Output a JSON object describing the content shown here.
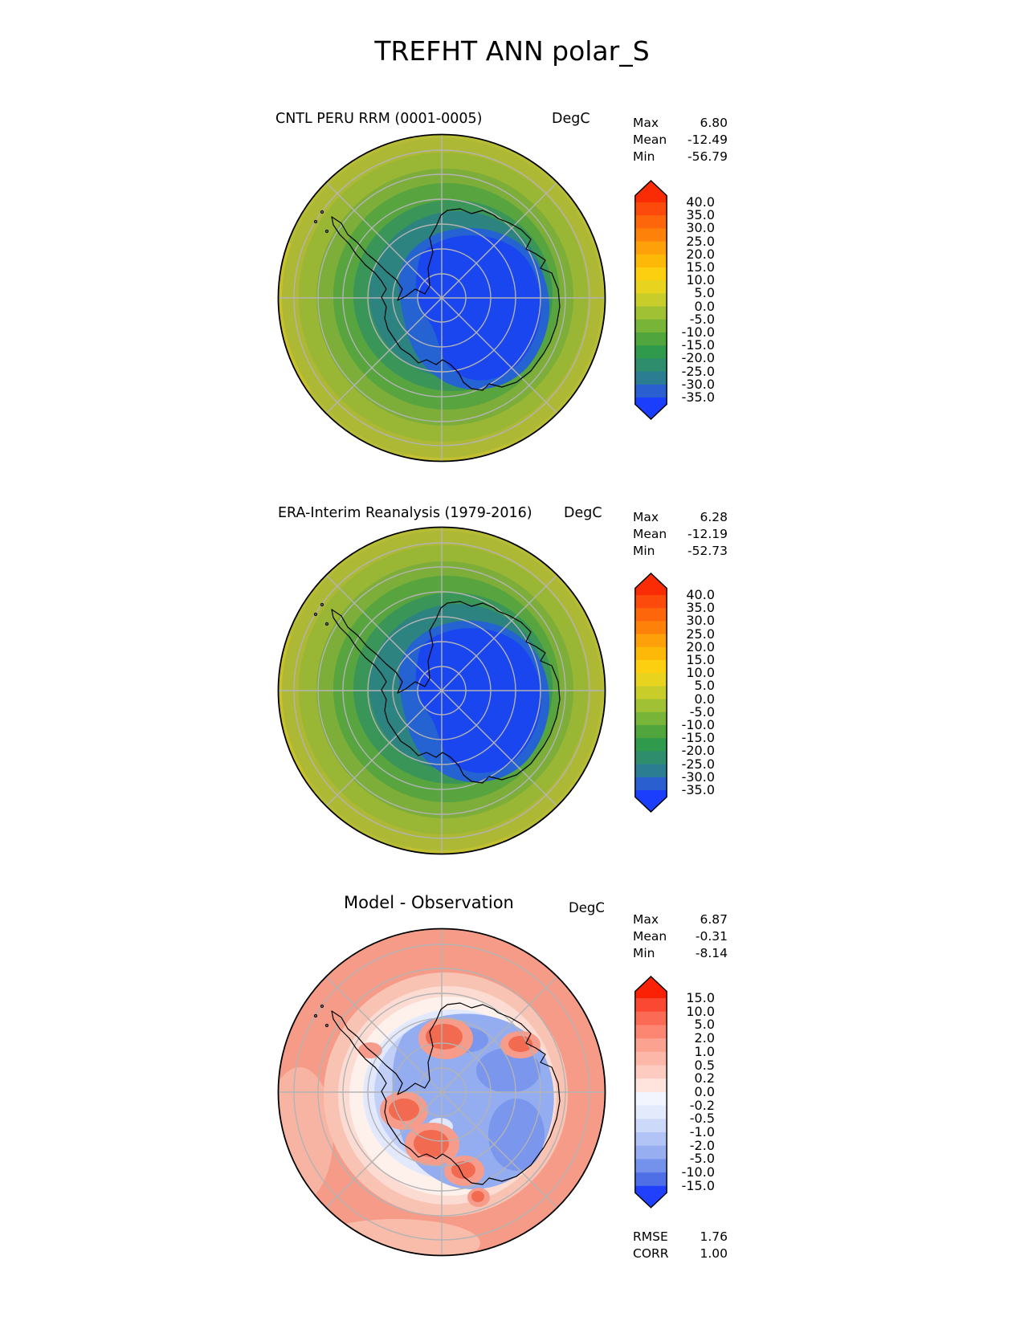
{
  "page_title": "TREFHT ANN polar_S",
  "panels": [
    {
      "title": "CNTL PERU RRM (0001-0005)",
      "units": "DegC",
      "stats": [
        {
          "label": "Max",
          "value": "6.80"
        },
        {
          "label": "Mean",
          "value": "-12.49"
        },
        {
          "label": "Min",
          "value": "-56.79"
        }
      ]
    },
    {
      "title": "ERA-Interim Reanalysis (1979-2016)",
      "units": "DegC",
      "stats": [
        {
          "label": "Max",
          "value": "6.28"
        },
        {
          "label": "Mean",
          "value": "-12.19"
        },
        {
          "label": "Min",
          "value": "-52.73"
        }
      ]
    },
    {
      "title": "Model - Observation",
      "units": "DegC",
      "stats": [
        {
          "label": "Max",
          "value": "6.87"
        },
        {
          "label": "Mean",
          "value": "-0.31"
        },
        {
          "label": "Min",
          "value": "-8.14"
        }
      ],
      "extra_stats": [
        {
          "label": "RMSE",
          "value": "1.76"
        },
        {
          "label": "CORR",
          "value": "1.00"
        }
      ]
    }
  ],
  "colorbars": {
    "absolute": {
      "labels": [
        "40.0",
        "35.0",
        "30.0",
        "25.0",
        "20.0",
        "15.0",
        "10.0",
        "5.0",
        "0.0",
        "-5.0",
        "-10.0",
        "-15.0",
        "-20.0",
        "-25.0",
        "-30.0",
        "-35.0"
      ],
      "cap_top_color": "#f92c06",
      "cap_bottom_color": "#1b3dfc",
      "segment_colors": [
        "#fc4a0d",
        "#fd660b",
        "#fe810a",
        "#fea009",
        "#feb808",
        "#fccf10",
        "#e8d41e",
        "#c8cd2a",
        "#9fc133",
        "#77b437",
        "#50a53c",
        "#2f9a4b",
        "#2d8d6d",
        "#2b7e92",
        "#2a5fd0"
      ]
    },
    "difference": {
      "labels": [
        "15.0",
        "10.0",
        "5.0",
        "2.0",
        "1.0",
        "0.5",
        "0.2",
        "0.0",
        "-0.2",
        "-0.5",
        "-1.0",
        "-2.0",
        "-5.0",
        "-10.0",
        "-15.0"
      ],
      "cap_top_color": "#fb2105",
      "cap_bottom_color": "#2040fe",
      "segment_colors": [
        "#fb4833",
        "#fb6a54",
        "#fc8672",
        "#fca291",
        "#fdb7a8",
        "#fdcbbf",
        "#fee4dd",
        "#f2f5fe",
        "#e3eafc",
        "#ccd9f9",
        "#b2c3f5",
        "#97aff1",
        "#7492ec",
        "#4e6fe6"
      ]
    }
  },
  "chart_data": [
    {
      "type": "contour_map",
      "variable": "TREFHT",
      "season": "ANN",
      "region": "polar_S",
      "projection": "south polar stereographic",
      "title": "CNTL PERU RRM (0001-0005)",
      "units": "DegC",
      "stats": {
        "max": 6.8,
        "mean": -12.49,
        "min": -56.79
      },
      "contour_levels": [
        -35,
        -30,
        -25,
        -20,
        -15,
        -10,
        -5,
        0,
        5,
        10,
        15,
        20,
        25,
        30,
        35,
        40
      ],
      "palette": "yellow-green outer latitudes grading to blue over Antarctic interior"
    },
    {
      "type": "contour_map",
      "variable": "TREFHT",
      "season": "ANN",
      "region": "polar_S",
      "projection": "south polar stereographic",
      "title": "ERA-Interim Reanalysis (1979-2016)",
      "units": "DegC",
      "stats": {
        "max": 6.28,
        "mean": -12.19,
        "min": -52.73
      },
      "contour_levels": [
        -35,
        -30,
        -25,
        -20,
        -15,
        -10,
        -5,
        0,
        5,
        10,
        15,
        20,
        25,
        30,
        35,
        40
      ],
      "palette": "yellow-green outer latitudes grading to blue over Antarctic interior"
    },
    {
      "type": "contour_map",
      "variable": "TREFHT difference",
      "season": "ANN",
      "region": "polar_S",
      "projection": "south polar stereographic",
      "title": "Model - Observation",
      "units": "DegC",
      "stats": {
        "max": 6.87,
        "mean": -0.31,
        "min": -8.14,
        "rmse": 1.76,
        "corr": 1.0
      },
      "contour_levels": [
        -15,
        -10,
        -5,
        -2,
        -1,
        -0.5,
        -0.2,
        0,
        0.2,
        0.5,
        1,
        2,
        5,
        10,
        15
      ],
      "palette": "red (model warm bias) over ocean ring, blue (cold bias) over Antarctic interior with red patches along Transantarctic ranges"
    }
  ]
}
